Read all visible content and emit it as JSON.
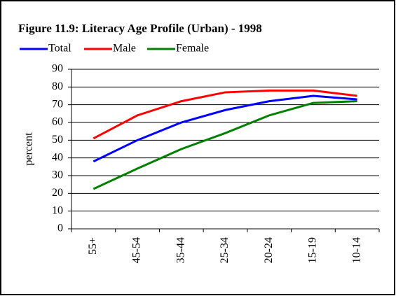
{
  "chart_data": {
    "type": "line",
    "title": "Figure 11.9: Literacy Age Profile (Urban) - 1998",
    "y_label": "percent",
    "categories": [
      "55+",
      "45-54",
      "35-44",
      "25-34",
      "20-24",
      "15-19",
      "10-14"
    ],
    "series": [
      {
        "name": "Total",
        "color": "#0000ff",
        "values": [
          38,
          50,
          60,
          67,
          72,
          75,
          73
        ]
      },
      {
        "name": "Male",
        "color": "#ff0000",
        "values": [
          51,
          64,
          72,
          77,
          78,
          78,
          75
        ]
      },
      {
        "name": "Female",
        "color": "#008000",
        "values": [
          22.5,
          34,
          45,
          54,
          64,
          71,
          72
        ]
      }
    ],
    "ylim": [
      0,
      90
    ],
    "yticks": [
      0,
      10,
      20,
      30,
      40,
      50,
      60,
      70,
      80,
      90
    ],
    "grid": true
  }
}
